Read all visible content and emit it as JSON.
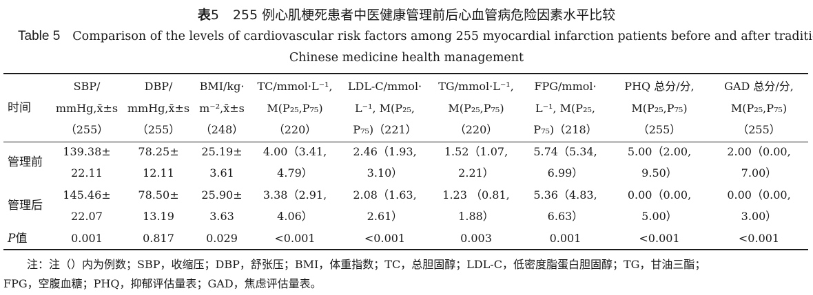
{
  "title_cn": {
    "label": "表",
    "num": "5",
    "text": "255 例心肌梗死患者中医健康管理前后心血管病危险因素水平比较"
  },
  "title_en": {
    "label": "Table 5",
    "line1": "Comparison of the levels of cardiovascular risk factors among 255 myocardial infarction patients before and after traditional",
    "line2": "Chinese medicine health management"
  },
  "columns": [
    {
      "lines": [
        "时间"
      ]
    },
    {
      "lines": [
        "SBP/",
        "mmHg,x̄±s",
        "（255）"
      ]
    },
    {
      "lines": [
        "DBP/",
        "mmHg,x̄±s",
        "（255）"
      ]
    },
    {
      "lines": [
        "BMI/kg·",
        "m⁻²,x̄±s",
        "（248）"
      ]
    },
    {
      "lines": [
        "TC/mmol·L⁻¹,",
        "M(P₂₅,P₇₅)",
        "（220）"
      ]
    },
    {
      "lines": [
        "LDL-C/mmol·",
        "L⁻¹, M(P₂₅,",
        "P₇₅)（221）"
      ]
    },
    {
      "lines": [
        "TG/mmol·L⁻¹,",
        "M(P₂₅,P₇₅)",
        "（220）"
      ]
    },
    {
      "lines": [
        "FPG/mmol·",
        "L⁻¹, M(P₂₅,",
        "P₇₅)（218）"
      ]
    },
    {
      "lines": [
        "PHQ 总分/分,",
        "M(P₂₅,P₇₅)",
        "（255）"
      ]
    },
    {
      "lines": [
        "GAD 总分/分,",
        "M(P₂₅,P₇₅)",
        "（255）"
      ]
    }
  ],
  "rows": [
    {
      "label": "管理前",
      "cells": [
        [
          "139.38±",
          "22.11"
        ],
        [
          "78.25±",
          "12.11"
        ],
        [
          "25.19±",
          "3.61"
        ],
        [
          "4.00（3.41,",
          "4.79）"
        ],
        [
          "2.46（1.93,",
          "3.10）"
        ],
        [
          "1.52（1.07,",
          "2.21）"
        ],
        [
          "5.74（5.34,",
          "6.99）"
        ],
        [
          "5.00（2.00,",
          "9.50）"
        ],
        [
          "2.00（0.00,",
          "7.00）"
        ]
      ]
    },
    {
      "label": "管理后",
      "cells": [
        [
          "145.46±",
          "22.07"
        ],
        [
          "78.50±",
          "13.19"
        ],
        [
          "25.90±",
          "3.63"
        ],
        [
          "3.38（2.91,",
          "4.06）"
        ],
        [
          "2.08（1.63,",
          "2.61）"
        ],
        [
          "1.23 （0.81,",
          "1.88）"
        ],
        [
          "5.36（4.83,",
          "6.63）"
        ],
        [
          "0.00（0.00,",
          "5.00）"
        ],
        [
          "0.00（0.00,",
          "3.00）"
        ]
      ]
    }
  ],
  "p_row": {
    "label_italic": "P",
    "label_rest": "值",
    "values": [
      "0.001",
      "0.817",
      "0.029",
      "<0.001",
      "<0.001",
      "0.003",
      "0.001",
      "<0.001",
      "<0.001"
    ]
  },
  "note": {
    "line1": "注：注（）内为例数；SBP，收缩压；DBP，舒张压；BMI，体重指数；TC，总胆固醇；LDL-C，低密度脂蛋白胆固醇；TG，甘油三酯；",
    "line2": "FPG，空腹血糖；PHQ，抑郁评估量表；GAD，焦虑评估量表。"
  }
}
